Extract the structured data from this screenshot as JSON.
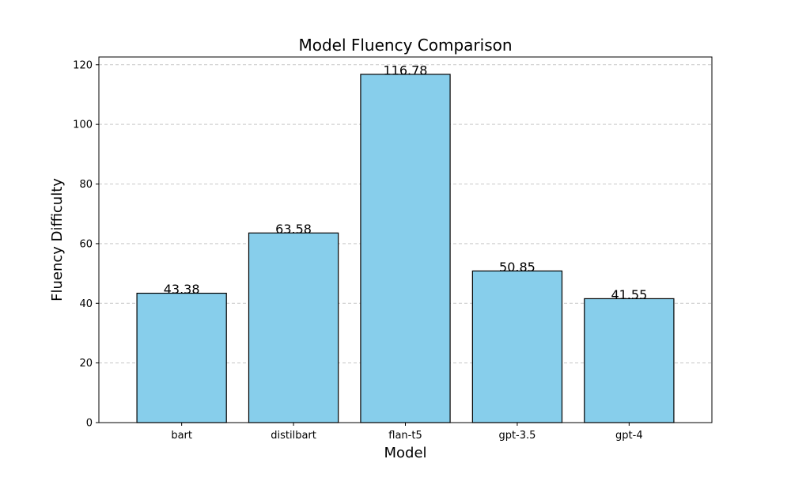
{
  "chart_data": {
    "type": "bar",
    "title": "Model Fluency Comparison",
    "xlabel": "Model",
    "ylabel": "Fluency Difficulty",
    "categories": [
      "bart",
      "distilbart",
      "flan-t5",
      "gpt-3.5",
      "gpt-4"
    ],
    "values": [
      43.38,
      63.58,
      116.78,
      50.85,
      41.55
    ],
    "value_labels": [
      "43.38",
      "63.58",
      "116.78",
      "50.85",
      "41.55"
    ],
    "ylim": [
      0,
      122.6
    ],
    "yticks": [
      0,
      20,
      40,
      60,
      80,
      100,
      120
    ],
    "grid": "y-dashed",
    "legend": "none",
    "colors": {
      "bar_fill": "#87CEEB",
      "bar_edge": "#000000",
      "grid": "#c8c8c8"
    }
  }
}
